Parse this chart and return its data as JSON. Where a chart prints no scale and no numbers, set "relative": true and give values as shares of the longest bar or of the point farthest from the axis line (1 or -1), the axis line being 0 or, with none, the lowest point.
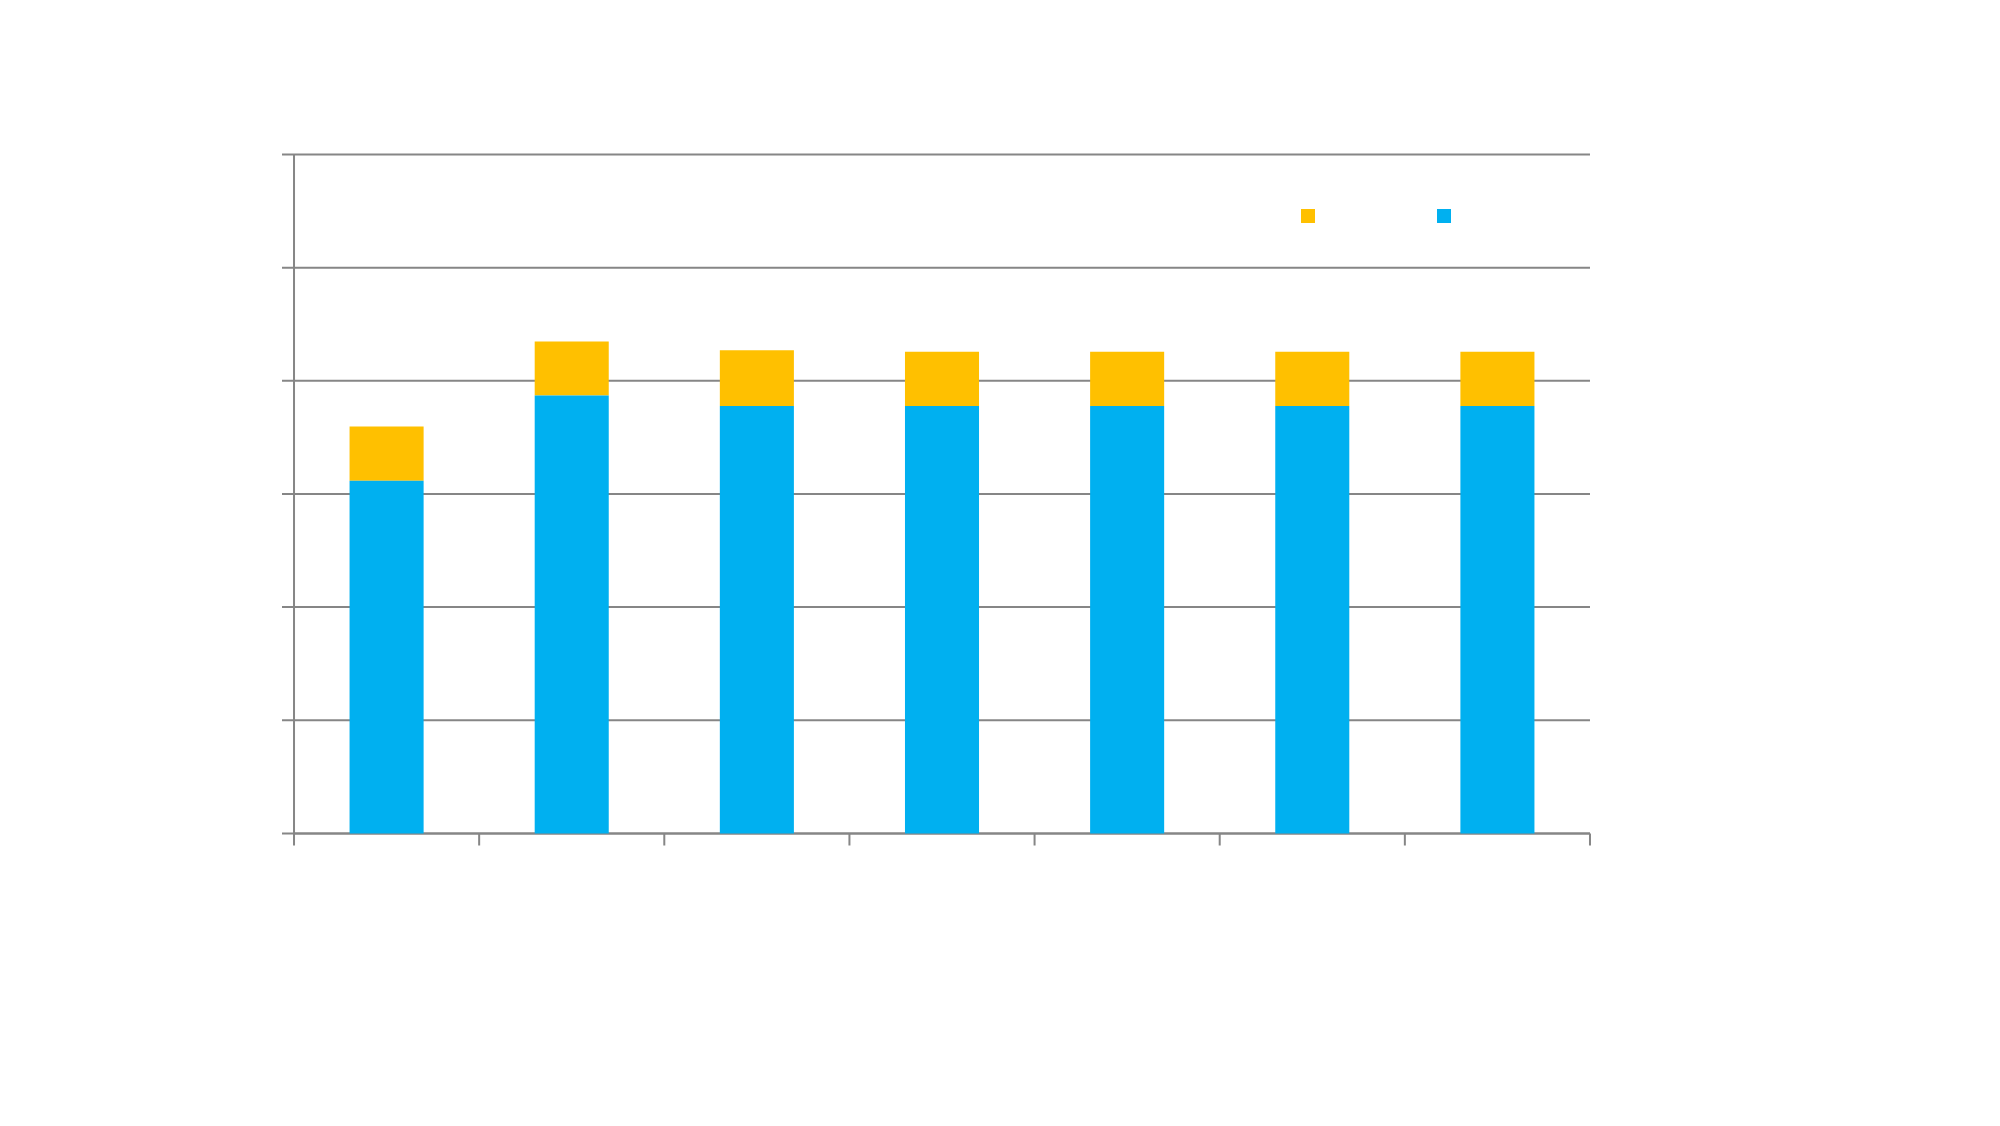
{
  "chart_data": {
    "type": "bar",
    "stacked": true,
    "relative": true,
    "categories": [
      null,
      null,
      null,
      null,
      null,
      null,
      null
    ],
    "series": [
      {
        "color": "#00b0f0",
        "values": [
          0.717,
          0.89,
          0.869,
          0.869,
          0.869,
          0.869,
          0.869
        ]
      },
      {
        "color": "#ffc000",
        "values": [
          0.11,
          0.11,
          0.113,
          0.11,
          0.11,
          0.11,
          0.11
        ]
      }
    ],
    "grid": "y"
  }
}
